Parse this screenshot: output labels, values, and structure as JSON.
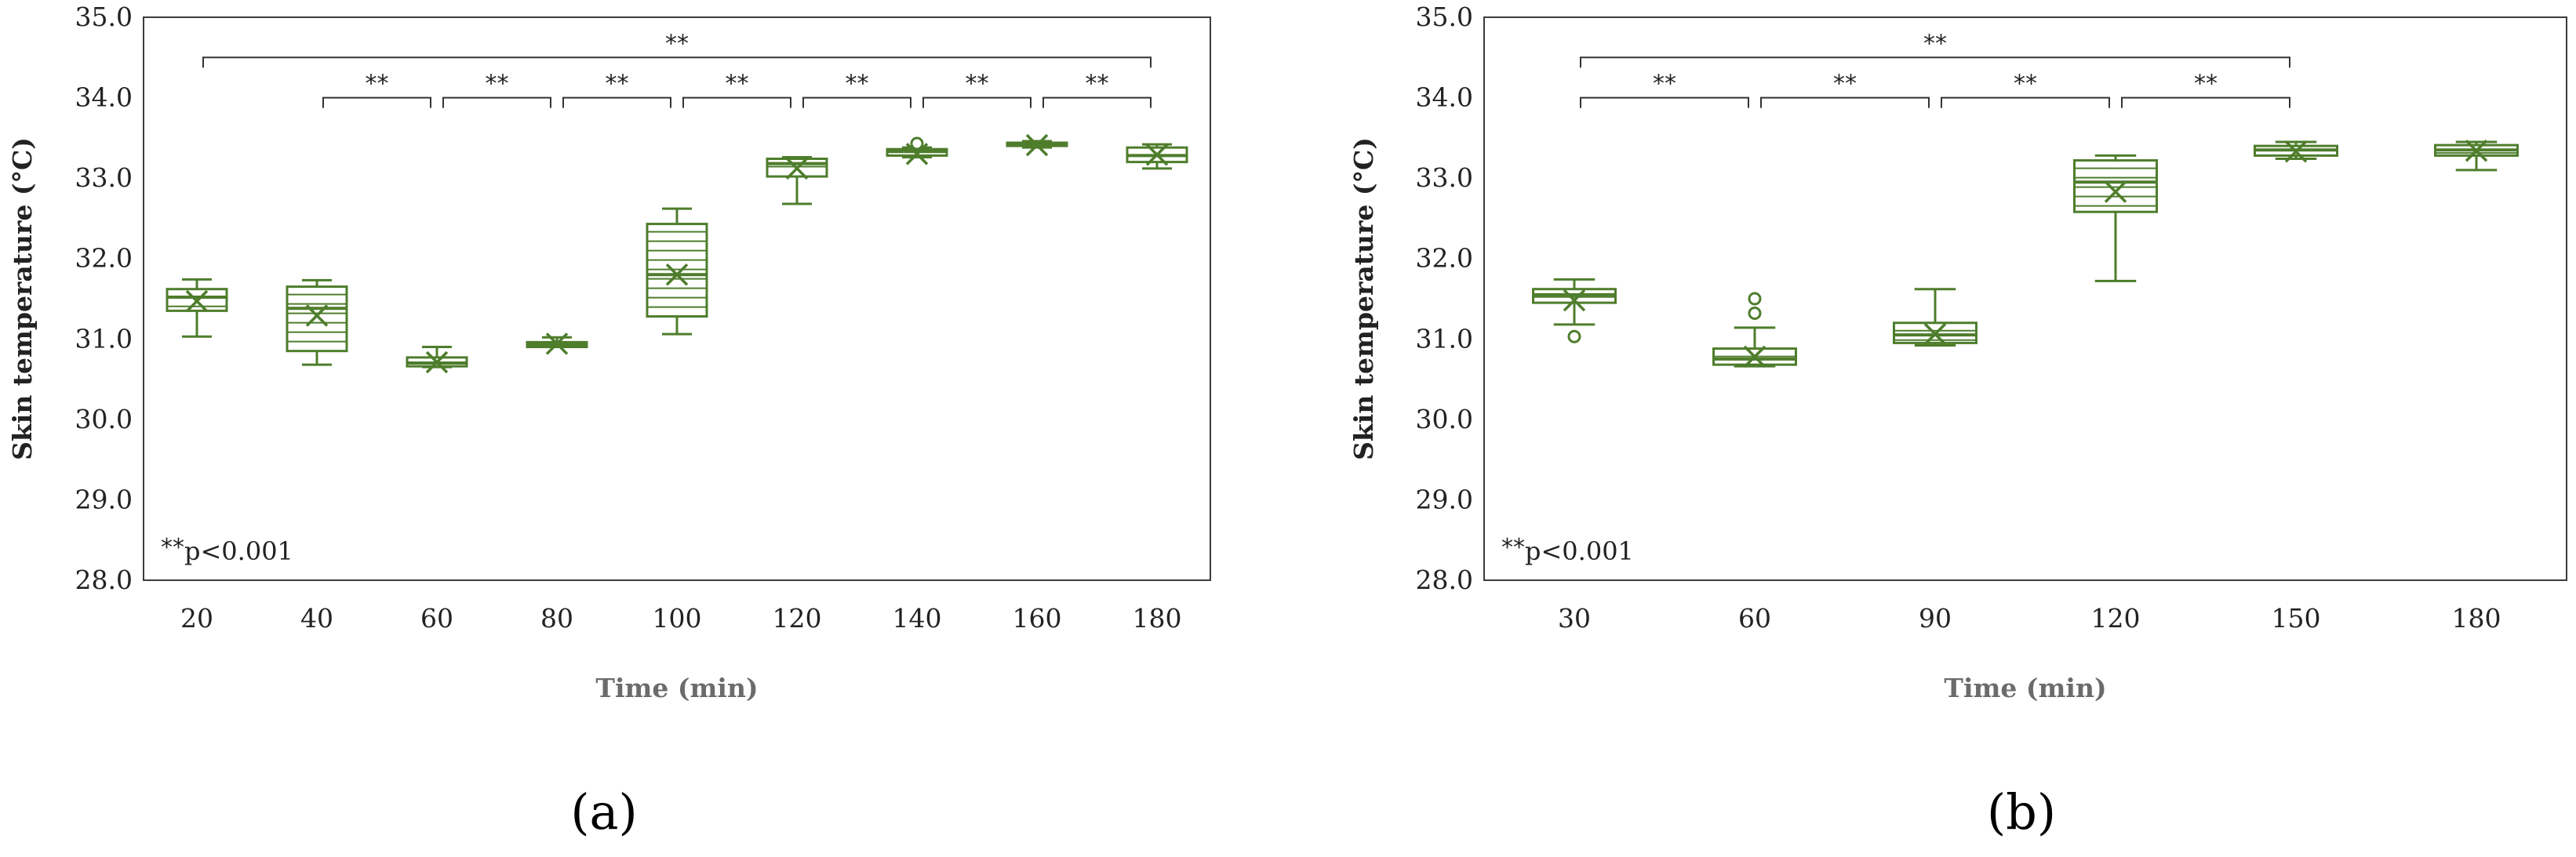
{
  "colors": {
    "series": "#4e7d2c",
    "frame": "#3c3c3c",
    "text": "#222222",
    "axis_title": "#6b6b6b"
  },
  "chart_data": [
    {
      "type": "box",
      "panel_label": "(a)",
      "xlabel": "Time (min)",
      "ylabel": "Skin temperature (°C)",
      "ylim": [
        28.0,
        35.0
      ],
      "yticks": [
        "28.0",
        "29.0",
        "30.0",
        "31.0",
        "32.0",
        "33.0",
        "34.0",
        "35.0"
      ],
      "categories": [
        "20",
        "40",
        "60",
        "80",
        "100",
        "120",
        "140",
        "160",
        "180"
      ],
      "boxes": [
        {
          "min": 31.03,
          "q1": 31.35,
          "median": 31.52,
          "q3": 31.62,
          "max": 31.74,
          "mean": 31.47,
          "outliers": []
        },
        {
          "min": 30.68,
          "q1": 30.85,
          "median": 31.38,
          "q3": 31.65,
          "max": 31.73,
          "mean": 31.29,
          "outliers": []
        },
        {
          "min": 30.65,
          "q1": 30.66,
          "median": 30.7,
          "q3": 30.77,
          "max": 30.9,
          "mean": 30.71,
          "outliers": []
        },
        {
          "min": 30.9,
          "q1": 30.9,
          "median": 30.93,
          "q3": 30.96,
          "max": 31.02,
          "mean": 30.94,
          "outliers": []
        },
        {
          "min": 31.06,
          "q1": 31.28,
          "median": 31.8,
          "q3": 32.43,
          "max": 32.62,
          "mean": 31.8,
          "outliers": []
        },
        {
          "min": 32.68,
          "q1": 33.02,
          "median": 33.18,
          "q3": 33.24,
          "max": 33.26,
          "mean": 33.12,
          "outliers": []
        },
        {
          "min": 33.26,
          "q1": 33.28,
          "median": 33.33,
          "q3": 33.36,
          "max": 33.38,
          "mean": 33.3,
          "outliers": [
            33.43
          ]
        },
        {
          "min": 33.38,
          "q1": 33.4,
          "median": 33.42,
          "q3": 33.44,
          "max": 33.46,
          "mean": 33.41,
          "outliers": []
        },
        {
          "min": 33.12,
          "q1": 33.2,
          "median": 33.28,
          "q3": 33.38,
          "max": 33.42,
          "mean": 33.29,
          "outliers": []
        }
      ],
      "significance": [
        {
          "from": 0,
          "to": 8,
          "y": 34.5,
          "label": "**"
        },
        {
          "from": 1,
          "to": 2,
          "y": 34.0,
          "label": "**"
        },
        {
          "from": 2,
          "to": 3,
          "y": 34.0,
          "label": "**"
        },
        {
          "from": 3,
          "to": 4,
          "y": 34.0,
          "label": "**"
        },
        {
          "from": 4,
          "to": 5,
          "y": 34.0,
          "label": "**"
        },
        {
          "from": 5,
          "to": 6,
          "y": 34.0,
          "label": "**"
        },
        {
          "from": 6,
          "to": 7,
          "y": 34.0,
          "label": "**"
        },
        {
          "from": 7,
          "to": 8,
          "y": 34.0,
          "label": "**"
        }
      ],
      "note_stars": "**",
      "note_text": "p<0.001"
    },
    {
      "type": "box",
      "panel_label": "(b)",
      "xlabel": "Time (min)",
      "ylabel": "Skin temperature (°C)",
      "ylim": [
        28.0,
        35.0
      ],
      "yticks": [
        "28.0",
        "29.0",
        "30.0",
        "31.0",
        "32.0",
        "33.0",
        "34.0",
        "35.0"
      ],
      "categories": [
        "30",
        "60",
        "90",
        "120",
        "150",
        "180"
      ],
      "boxes": [
        {
          "min": 31.18,
          "q1": 31.45,
          "median": 31.55,
          "q3": 31.62,
          "max": 31.74,
          "mean": 31.48,
          "outliers": [
            31.03
          ]
        },
        {
          "min": 30.66,
          "q1": 30.68,
          "median": 30.75,
          "q3": 30.88,
          "max": 31.14,
          "mean": 30.78,
          "outliers": [
            31.32,
            31.5
          ]
        },
        {
          "min": 30.92,
          "q1": 30.95,
          "median": 31.05,
          "q3": 31.2,
          "max": 31.62,
          "mean": 31.06,
          "outliers": []
        },
        {
          "min": 31.72,
          "q1": 32.58,
          "median": 32.95,
          "q3": 33.22,
          "max": 33.28,
          "mean": 32.83,
          "outliers": []
        },
        {
          "min": 33.24,
          "q1": 33.28,
          "median": 33.35,
          "q3": 33.4,
          "max": 33.45,
          "mean": 33.33,
          "outliers": []
        },
        {
          "min": 33.1,
          "q1": 33.28,
          "median": 33.35,
          "q3": 33.41,
          "max": 33.45,
          "mean": 33.34,
          "outliers": []
        }
      ],
      "significance": [
        {
          "from": 0,
          "to": 4,
          "y": 34.5,
          "label": "**"
        },
        {
          "from": 0,
          "to": 1,
          "y": 34.0,
          "label": "**"
        },
        {
          "from": 1,
          "to": 2,
          "y": 34.0,
          "label": "**"
        },
        {
          "from": 2,
          "to": 3,
          "y": 34.0,
          "label": "**"
        },
        {
          "from": 3,
          "to": 4,
          "y": 34.0,
          "label": "**"
        }
      ],
      "note_stars": "**",
      "note_text": "p<0.001"
    }
  ]
}
